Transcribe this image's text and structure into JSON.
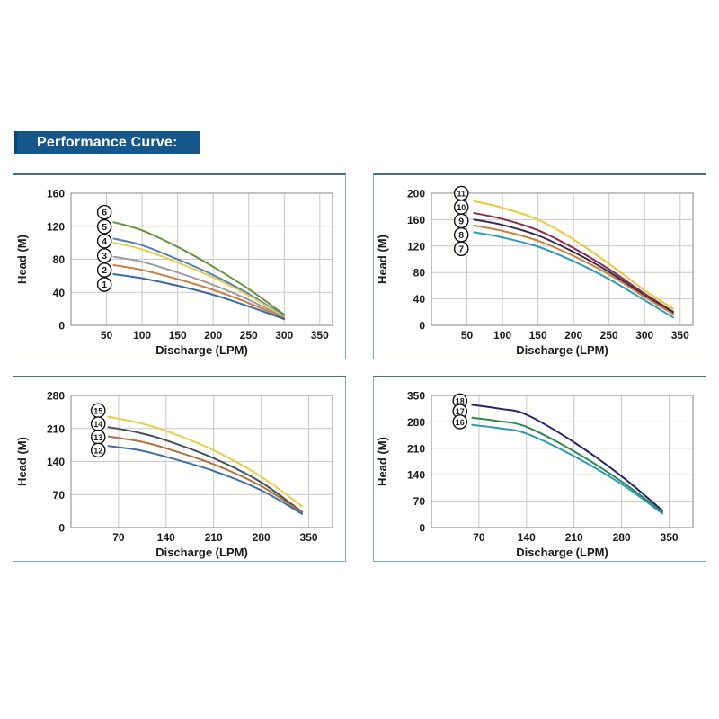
{
  "title": "Performance Curve:",
  "colors": {
    "title_bar_bg": "#15568b",
    "title_text": "#ffffff",
    "panel_border": "#7fa8bc",
    "panel_border_top": "#44708a",
    "grid": "#c9c9c9",
    "plot_border": "#9a9a9a",
    "tick_text": "#1a1a1a",
    "badge_fill": "#ffffff",
    "badge_stroke": "#111111"
  },
  "chart_data": [
    {
      "type": "line",
      "name": "chart-1",
      "xlabel": "Discharge (LPM)",
      "ylabel": "Head (M)",
      "xlim": [
        0,
        368
      ],
      "ylim": [
        0,
        160
      ],
      "xticks": [
        50,
        100,
        150,
        200,
        250,
        300,
        350
      ],
      "yticks": [
        0,
        40,
        80,
        120,
        160
      ],
      "grid": true,
      "legend_style": "circled numbers left of curve starts",
      "badges": [
        {
          "label": "6",
          "x": 47,
          "y": 137
        },
        {
          "label": "5",
          "x": 47,
          "y": 119.5
        },
        {
          "label": "4",
          "x": 47,
          "y": 102
        },
        {
          "label": "3",
          "x": 47,
          "y": 84.5
        },
        {
          "label": "2",
          "x": 47,
          "y": 67
        },
        {
          "label": "1",
          "x": 47,
          "y": 49.5
        }
      ],
      "series": [
        {
          "name": "6",
          "color": "#6e9140",
          "points": [
            [
              60,
              125
            ],
            [
              100,
              115
            ],
            [
              150,
              95
            ],
            [
              200,
              71
            ],
            [
              250,
              44
            ],
            [
              300,
              13
            ]
          ]
        },
        {
          "name": "5",
          "color": "#4e80ae",
          "points": [
            [
              60,
              105
            ],
            [
              100,
              97
            ],
            [
              150,
              80
            ],
            [
              200,
              61
            ],
            [
              250,
              38
            ],
            [
              300,
              11.5
            ]
          ]
        },
        {
          "name": "4",
          "color": "#e3ce52",
          "points": [
            [
              60,
              100
            ],
            [
              100,
              92
            ],
            [
              150,
              76
            ],
            [
              200,
              58
            ],
            [
              250,
              36
            ],
            [
              300,
              10.5
            ]
          ]
        },
        {
          "name": "3",
          "color": "#9b9ba3",
          "points": [
            [
              60,
              83
            ],
            [
              100,
              77
            ],
            [
              150,
              64
            ],
            [
              200,
              49
            ],
            [
              250,
              31
            ],
            [
              300,
              9.5
            ]
          ]
        },
        {
          "name": "2",
          "color": "#c97f45",
          "points": [
            [
              60,
              73
            ],
            [
              100,
              67
            ],
            [
              150,
              56
            ],
            [
              200,
              43
            ],
            [
              250,
              27
            ],
            [
              300,
              8.5
            ]
          ]
        },
        {
          "name": "1",
          "color": "#3a699f",
          "points": [
            [
              60,
              62
            ],
            [
              100,
              57
            ],
            [
              150,
              48
            ],
            [
              200,
              37
            ],
            [
              250,
              23
            ],
            [
              300,
              7.5
            ]
          ]
        }
      ]
    },
    {
      "type": "line",
      "name": "chart-2",
      "xlabel": "Discharge (LPM)",
      "ylabel": "Head (M)",
      "xlim": [
        0,
        368
      ],
      "ylim": [
        0,
        200
      ],
      "xticks": [
        50,
        100,
        150,
        200,
        250,
        300,
        350
      ],
      "yticks": [
        0,
        40,
        80,
        120,
        160,
        200
      ],
      "grid": true,
      "legend_style": "circled numbers left of curve starts",
      "badges": [
        {
          "label": "11",
          "x": 42,
          "y": 200
        },
        {
          "label": "10",
          "x": 42,
          "y": 179
        },
        {
          "label": "9",
          "x": 42,
          "y": 158
        },
        {
          "label": "8",
          "x": 42,
          "y": 137
        },
        {
          "label": "7",
          "x": 42,
          "y": 116
        }
      ],
      "series": [
        {
          "name": "11",
          "color": "#e7c83f",
          "points": [
            [
              60,
              188
            ],
            [
              100,
              178
            ],
            [
              150,
              160
            ],
            [
              200,
              130
            ],
            [
              250,
              93
            ],
            [
              300,
              53
            ],
            [
              340,
              25
            ]
          ]
        },
        {
          "name": "10",
          "color": "#882e4e",
          "points": [
            [
              60,
              170
            ],
            [
              100,
              161
            ],
            [
              150,
              144
            ],
            [
              200,
              117
            ],
            [
              250,
              85
            ],
            [
              300,
              48
            ],
            [
              340,
              21
            ]
          ]
        },
        {
          "name": "9",
          "color": "#372a52",
          "points": [
            [
              60,
              160
            ],
            [
              100,
              152
            ],
            [
              150,
              136
            ],
            [
              200,
              111
            ],
            [
              250,
              81
            ],
            [
              300,
              45
            ],
            [
              340,
              19
            ]
          ]
        },
        {
          "name": "8",
          "color": "#c5833d",
          "points": [
            [
              60,
              151
            ],
            [
              100,
              143
            ],
            [
              150,
              128
            ],
            [
              200,
              105
            ],
            [
              250,
              77
            ],
            [
              300,
              43
            ],
            [
              340,
              17
            ]
          ]
        },
        {
          "name": "7",
          "color": "#2d9cb8",
          "points": [
            [
              60,
              141
            ],
            [
              100,
              133
            ],
            [
              150,
              119
            ],
            [
              200,
              97
            ],
            [
              250,
              70
            ],
            [
              300,
              38
            ],
            [
              340,
              12
            ]
          ]
        }
      ]
    },
    {
      "type": "line",
      "name": "chart-3",
      "xlabel": "Discharge (LPM)",
      "ylabel": "Head (M)",
      "xlim": [
        0,
        385
      ],
      "ylim": [
        0,
        280
      ],
      "xticks": [
        70,
        140,
        210,
        280,
        350
      ],
      "yticks": [
        0,
        70,
        140,
        210,
        280
      ],
      "grid": true,
      "legend_style": "circled numbers left of curve starts",
      "badges": [
        {
          "label": "15",
          "x": 40,
          "y": 248
        },
        {
          "label": "14",
          "x": 40,
          "y": 220
        },
        {
          "label": "13",
          "x": 40,
          "y": 192
        },
        {
          "label": "12",
          "x": 40,
          "y": 164
        }
      ],
      "series": [
        {
          "name": "15",
          "color": "#e7cf47",
          "points": [
            [
              55,
              235
            ],
            [
              100,
              222
            ],
            [
              140,
              205
            ],
            [
              210,
              164
            ],
            [
              280,
              108
            ],
            [
              340,
              45
            ]
          ]
        },
        {
          "name": "14",
          "color": "#47525e",
          "points": [
            [
              55,
              213
            ],
            [
              100,
              201
            ],
            [
              140,
              185
            ],
            [
              210,
              147
            ],
            [
              280,
              96
            ],
            [
              340,
              33
            ]
          ]
        },
        {
          "name": "13",
          "color": "#b2703e",
          "points": [
            [
              55,
              193
            ],
            [
              100,
              183
            ],
            [
              140,
              168
            ],
            [
              210,
              134
            ],
            [
              280,
              88
            ],
            [
              340,
              31
            ]
          ]
        },
        {
          "name": "12",
          "color": "#4170a6",
          "points": [
            [
              55,
              173
            ],
            [
              100,
              164
            ],
            [
              140,
              150
            ],
            [
              210,
              120
            ],
            [
              280,
              79
            ],
            [
              340,
              29
            ]
          ]
        }
      ]
    },
    {
      "type": "line",
      "name": "chart-4",
      "xlabel": "Discharge (LPM)",
      "ylabel": "Head (M)",
      "xlim": [
        0,
        385
      ],
      "ylim": [
        0,
        350
      ],
      "xticks": [
        70,
        140,
        210,
        280,
        350
      ],
      "yticks": [
        0,
        70,
        140,
        210,
        280,
        350
      ],
      "grid": true,
      "legend_style": "circled numbers left of curve starts",
      "badges": [
        {
          "label": "18",
          "x": 42,
          "y": 336
        },
        {
          "label": "17",
          "x": 42,
          "y": 308
        },
        {
          "label": "16",
          "x": 42,
          "y": 280
        }
      ],
      "series": [
        {
          "name": "18",
          "color": "#2b2363",
          "points": [
            [
              60,
              325
            ],
            [
              100,
              315
            ],
            [
              140,
              299
            ],
            [
              210,
              226
            ],
            [
              280,
              136
            ],
            [
              340,
              45
            ]
          ]
        },
        {
          "name": "17",
          "color": "#318556",
          "points": [
            [
              60,
              291
            ],
            [
              100,
              282
            ],
            [
              140,
              267
            ],
            [
              210,
              202
            ],
            [
              280,
              122
            ],
            [
              340,
              41
            ]
          ]
        },
        {
          "name": "16",
          "color": "#2b9bb1",
          "points": [
            [
              60,
              272
            ],
            [
              100,
              263
            ],
            [
              140,
              249
            ],
            [
              210,
              189
            ],
            [
              280,
              115
            ],
            [
              340,
              37
            ]
          ]
        }
      ]
    }
  ]
}
